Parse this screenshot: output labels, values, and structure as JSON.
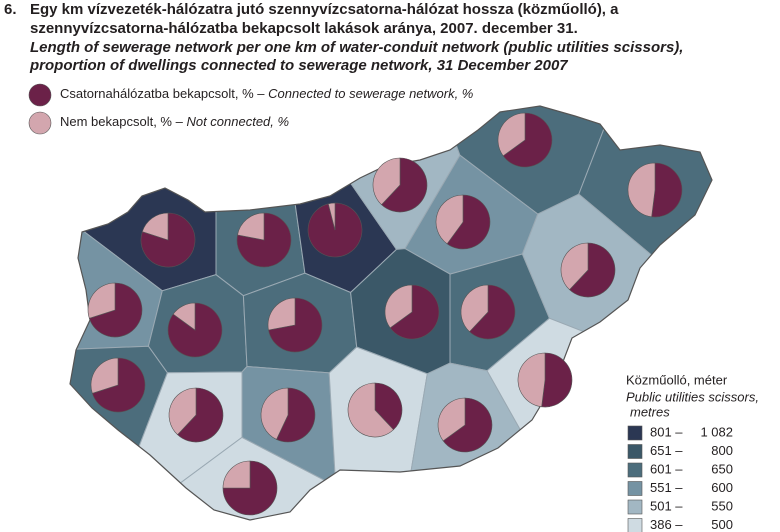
{
  "header": {
    "number": "6.",
    "title_lines": [
      "Egy km vízvezeték-hálózatra jutó szennyvízcsatorna-hálózat hossza (közműolló), a",
      "szennyvízcsatorna-hálózatba bekapcsolt lakások aránya, 2007. december 31."
    ],
    "subtitle_lines": [
      "Length of sewerage network per one km of water-conduit network (public utilities scissors),",
      "proportion of dwellings connected to sewerage network, 31 December 2007"
    ]
  },
  "pie_legend": [
    {
      "label": "Csatornahálózatba bekapcsolt, % – ",
      "label_en": "Connected to sewerage network, %",
      "color": "#6b2148"
    },
    {
      "label": "Nem bekapcsolt, % – ",
      "label_en": "Not connected, %",
      "color": "#d3a6ae"
    }
  ],
  "class_legend": {
    "title": "Közműolló, méter",
    "title_en_lines": [
      "Public utilities scissors,",
      "metres"
    ],
    "classes": [
      {
        "from": "801 –",
        "to": "1 082",
        "color": "#2b3753"
      },
      {
        "from": "651 –",
        "to": "800",
        "color": "#3b5868"
      },
      {
        "from": "601 –",
        "to": "650",
        "color": "#4c6d7c"
      },
      {
        "from": "551 –",
        "to": "600",
        "color": "#7593a3"
      },
      {
        "from": "501 –",
        "to": "550",
        "color": "#a2b7c3"
      },
      {
        "from": "386 –",
        "to": "500",
        "color": "#cfdbe2"
      }
    ]
  },
  "pies": [
    {
      "connected": 80,
      "not_connected": 20
    },
    {
      "connected": 78,
      "not_connected": 22
    },
    {
      "connected": 96,
      "not_connected": 4
    },
    {
      "connected": 62,
      "not_connected": 38
    },
    {
      "connected": 65,
      "not_connected": 35
    },
    {
      "connected": 60,
      "not_connected": 40
    },
    {
      "connected": 52,
      "not_connected": 48
    },
    {
      "connected": 70,
      "not_connected": 30
    },
    {
      "connected": 85,
      "not_connected": 15
    },
    {
      "connected": 72,
      "not_connected": 28
    },
    {
      "connected": 65,
      "not_connected": 35
    },
    {
      "connected": 62,
      "not_connected": 38
    },
    {
      "connected": 62,
      "not_connected": 38
    },
    {
      "connected": 70,
      "not_connected": 30
    },
    {
      "connected": 62,
      "not_connected": 38
    },
    {
      "connected": 57,
      "not_connected": 43
    },
    {
      "connected": 38,
      "not_connected": 62
    },
    {
      "connected": 65,
      "not_connected": 35
    },
    {
      "connected": 52,
      "not_connected": 48
    },
    {
      "connected": 75,
      "not_connected": 25
    }
  ]
}
